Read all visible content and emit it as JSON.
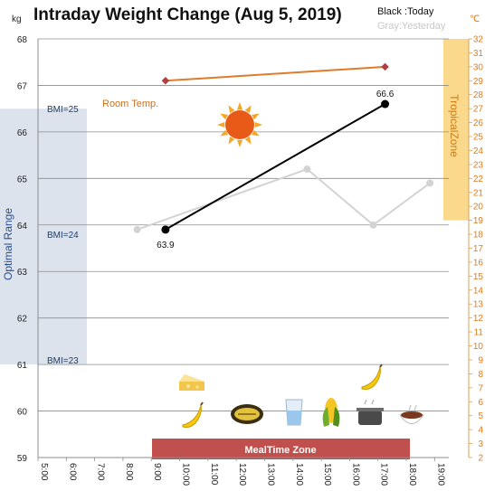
{
  "chart_data": {
    "type": "line",
    "title": "Intraday Weight Change (Aug 5, 2019)",
    "left_unit": "kg",
    "right_unit": "℃",
    "legend": {
      "today": "Black :Today",
      "yesterday": "Gray:Yesterday"
    },
    "x_ticks": [
      "5:00",
      "6:00",
      "7:00",
      "8:00",
      "9:00",
      "10:00",
      "11:00",
      "12:00",
      "13:00",
      "14:00",
      "15:00",
      "16:00",
      "17:00",
      "18:00",
      "19:00"
    ],
    "ylim": [
      59,
      68
    ],
    "yticks": [
      "59",
      "60",
      "61",
      "62",
      "63",
      "64",
      "65",
      "66",
      "67",
      "68"
    ],
    "y2lim": [
      2,
      32
    ],
    "y2ticks": [
      "2",
      "3",
      "4",
      "5",
      "6",
      "7",
      "8",
      "9",
      "10",
      "11",
      "12",
      "13",
      "14",
      "15",
      "16",
      "17",
      "18",
      "19",
      "20",
      "21",
      "22",
      "23",
      "24",
      "25",
      "26",
      "27",
      "28",
      "29",
      "30",
      "31",
      "32"
    ],
    "series": [
      {
        "name": "Today",
        "color": "#000000",
        "points": [
          {
            "x": "9:30",
            "y": 63.9
          },
          {
            "x": "17:15",
            "y": 66.6
          }
        ],
        "point_labels": [
          "63.9",
          "66.6"
        ]
      },
      {
        "name": "Yesterday",
        "color": "#d3d3d3",
        "points": [
          {
            "x": "8:30",
            "y": 63.9
          },
          {
            "x": "14:30",
            "y": 65.2
          },
          {
            "x": "16:50",
            "y": 64.0
          },
          {
            "x": "18:50",
            "y": 64.9
          }
        ]
      },
      {
        "name": "Room Temp.",
        "color": "#e07b2a",
        "axis": "right",
        "points": [
          {
            "x": "9:30",
            "y": 29.0
          },
          {
            "x": "17:15",
            "y": 30.0
          }
        ]
      }
    ],
    "bands": {
      "optimal_range": {
        "label": "Optimal Range",
        "y_from": 61.0,
        "y_to": 66.5,
        "color": "#dce3ec"
      },
      "tropical_zone": {
        "label": "TropicalZone",
        "y2_from": 19,
        "y2_to": 32,
        "color": "#fad98c"
      },
      "meal_time_zone": {
        "label": "MealTime Zone",
        "x_from": "9:00",
        "x_to": "18:00",
        "color": "#c0504d"
      }
    },
    "bmi_lines": [
      {
        "label": "BMI=25",
        "y": 66.5
      },
      {
        "label": "BMI=24",
        "y": 63.8
      },
      {
        "label": "BMI=23",
        "y": 61.1
      }
    ],
    "annotations": {
      "room_temp": "Room Temp."
    },
    "icons": [
      "cake-slice-icon",
      "banana-icon",
      "pickle-icon",
      "water-glass-icon",
      "corn-icon",
      "banana-icon",
      "cooking-pot-icon",
      "soup-bowl-icon",
      "sun-icon"
    ],
    "grid": true
  }
}
